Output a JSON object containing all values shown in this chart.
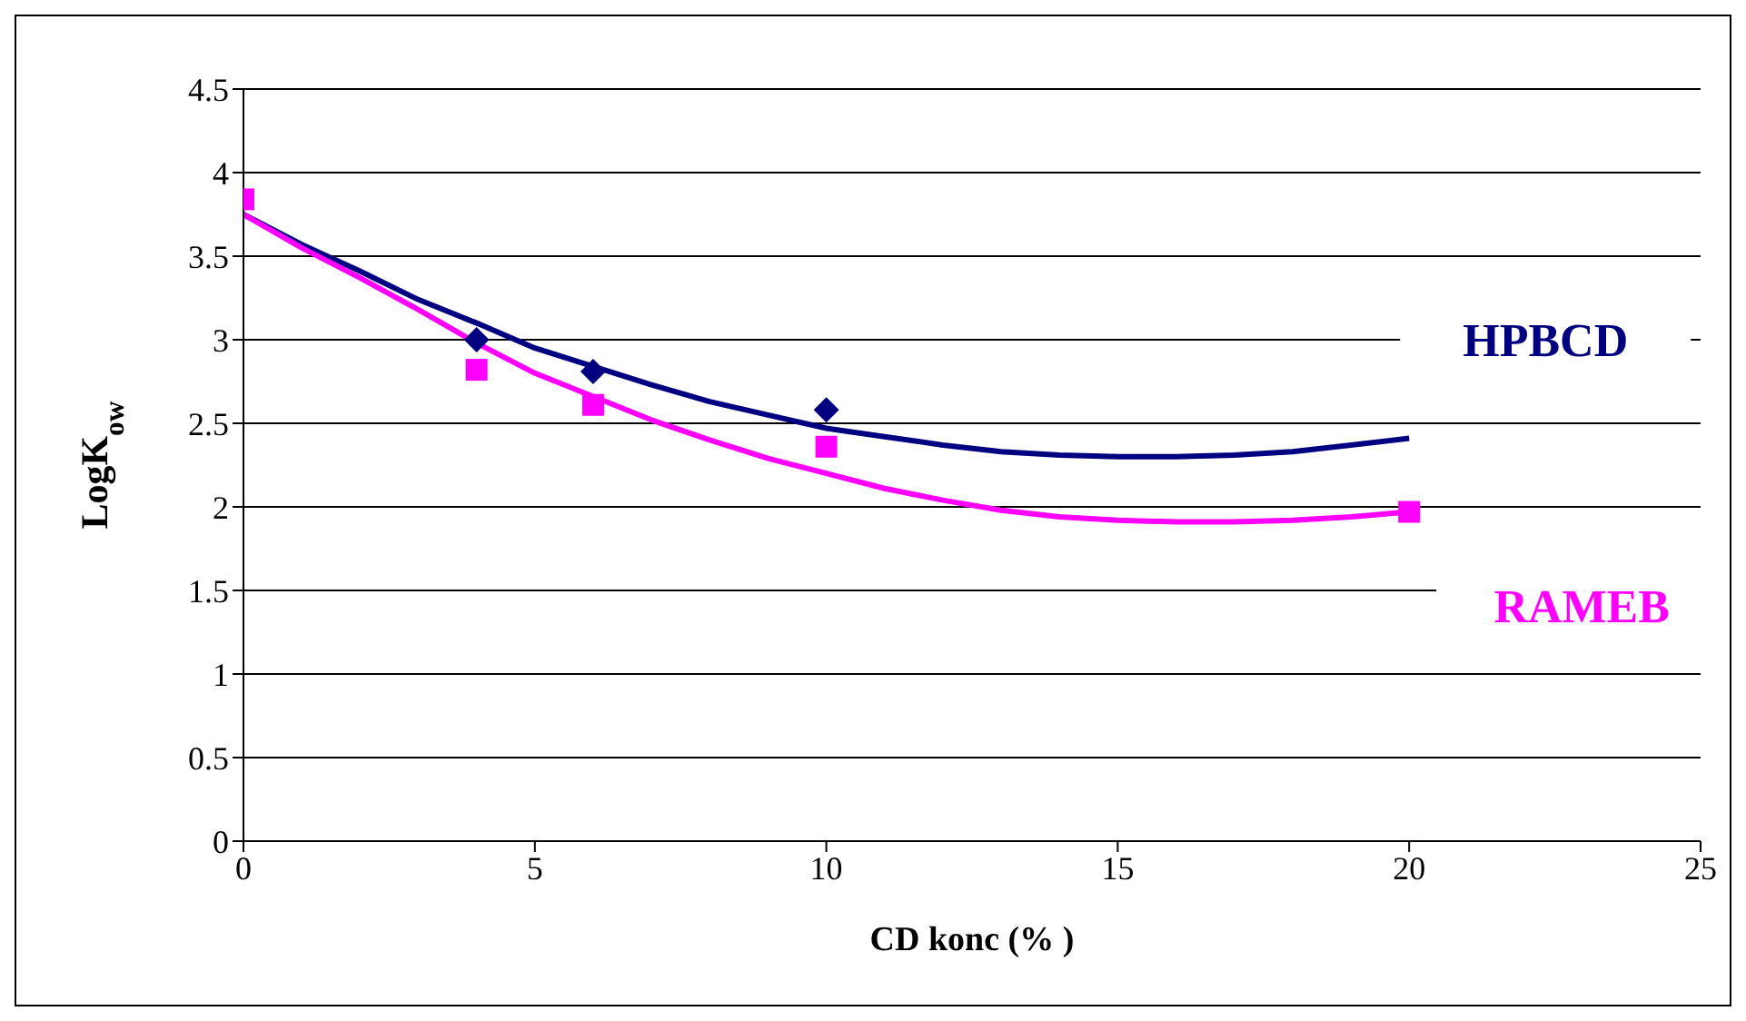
{
  "chart_data": {
    "type": "line",
    "xlabel": "CD konc (% )",
    "ylabel": "LogK$_{ow}$",
    "xlim": [
      0,
      25
    ],
    "xticks": [
      0,
      5,
      10,
      15,
      20,
      25
    ],
    "ylim": [
      0,
      4.5
    ],
    "yticks": [
      0,
      0.5,
      1,
      1.5,
      2,
      2.5,
      3,
      3.5,
      4,
      4.5
    ],
    "grid": "y",
    "legend": false,
    "series": [
      {
        "type": "scatter",
        "marker": "diamond",
        "color": "#000080",
        "x": [
          4,
          6,
          10
        ],
        "values": [
          3.0,
          2.81,
          2.58
        ]
      },
      {
        "type": "scatter",
        "marker": "square",
        "color": "#ff00ff",
        "x": [
          0,
          4,
          6,
          10,
          20
        ],
        "values": [
          3.84,
          2.82,
          2.61,
          2.36,
          1.97
        ]
      },
      {
        "marker": "none",
        "name": "HPBCD",
        "color": "#000080",
        "x": [
          0,
          1,
          2,
          3,
          4,
          5,
          6,
          7,
          8,
          9,
          10,
          11,
          12,
          13,
          14,
          15,
          16,
          17,
          18,
          19,
          20
        ],
        "values": [
          3.75,
          3.57,
          3.41,
          3.24,
          3.1,
          2.95,
          2.84,
          2.73,
          2.63,
          2.55,
          2.47,
          2.42,
          2.37,
          2.33,
          2.31,
          2.3,
          2.3,
          2.31,
          2.33,
          2.37,
          2.41
        ]
      },
      {
        "marker": "none",
        "name": "RAMEB",
        "color": "#ff00ff",
        "x": [
          0,
          1,
          2,
          3,
          4,
          5,
          6,
          7,
          8,
          9,
          10,
          11,
          12,
          13,
          14,
          15,
          16,
          17,
          18,
          19,
          20
        ],
        "values": [
          3.75,
          3.55,
          3.37,
          3.18,
          2.98,
          2.8,
          2.66,
          2.52,
          2.4,
          2.29,
          2.2,
          2.11,
          2.04,
          1.98,
          1.94,
          1.92,
          1.91,
          1.91,
          1.92,
          1.94,
          1.97
        ]
      }
    ]
  }
}
